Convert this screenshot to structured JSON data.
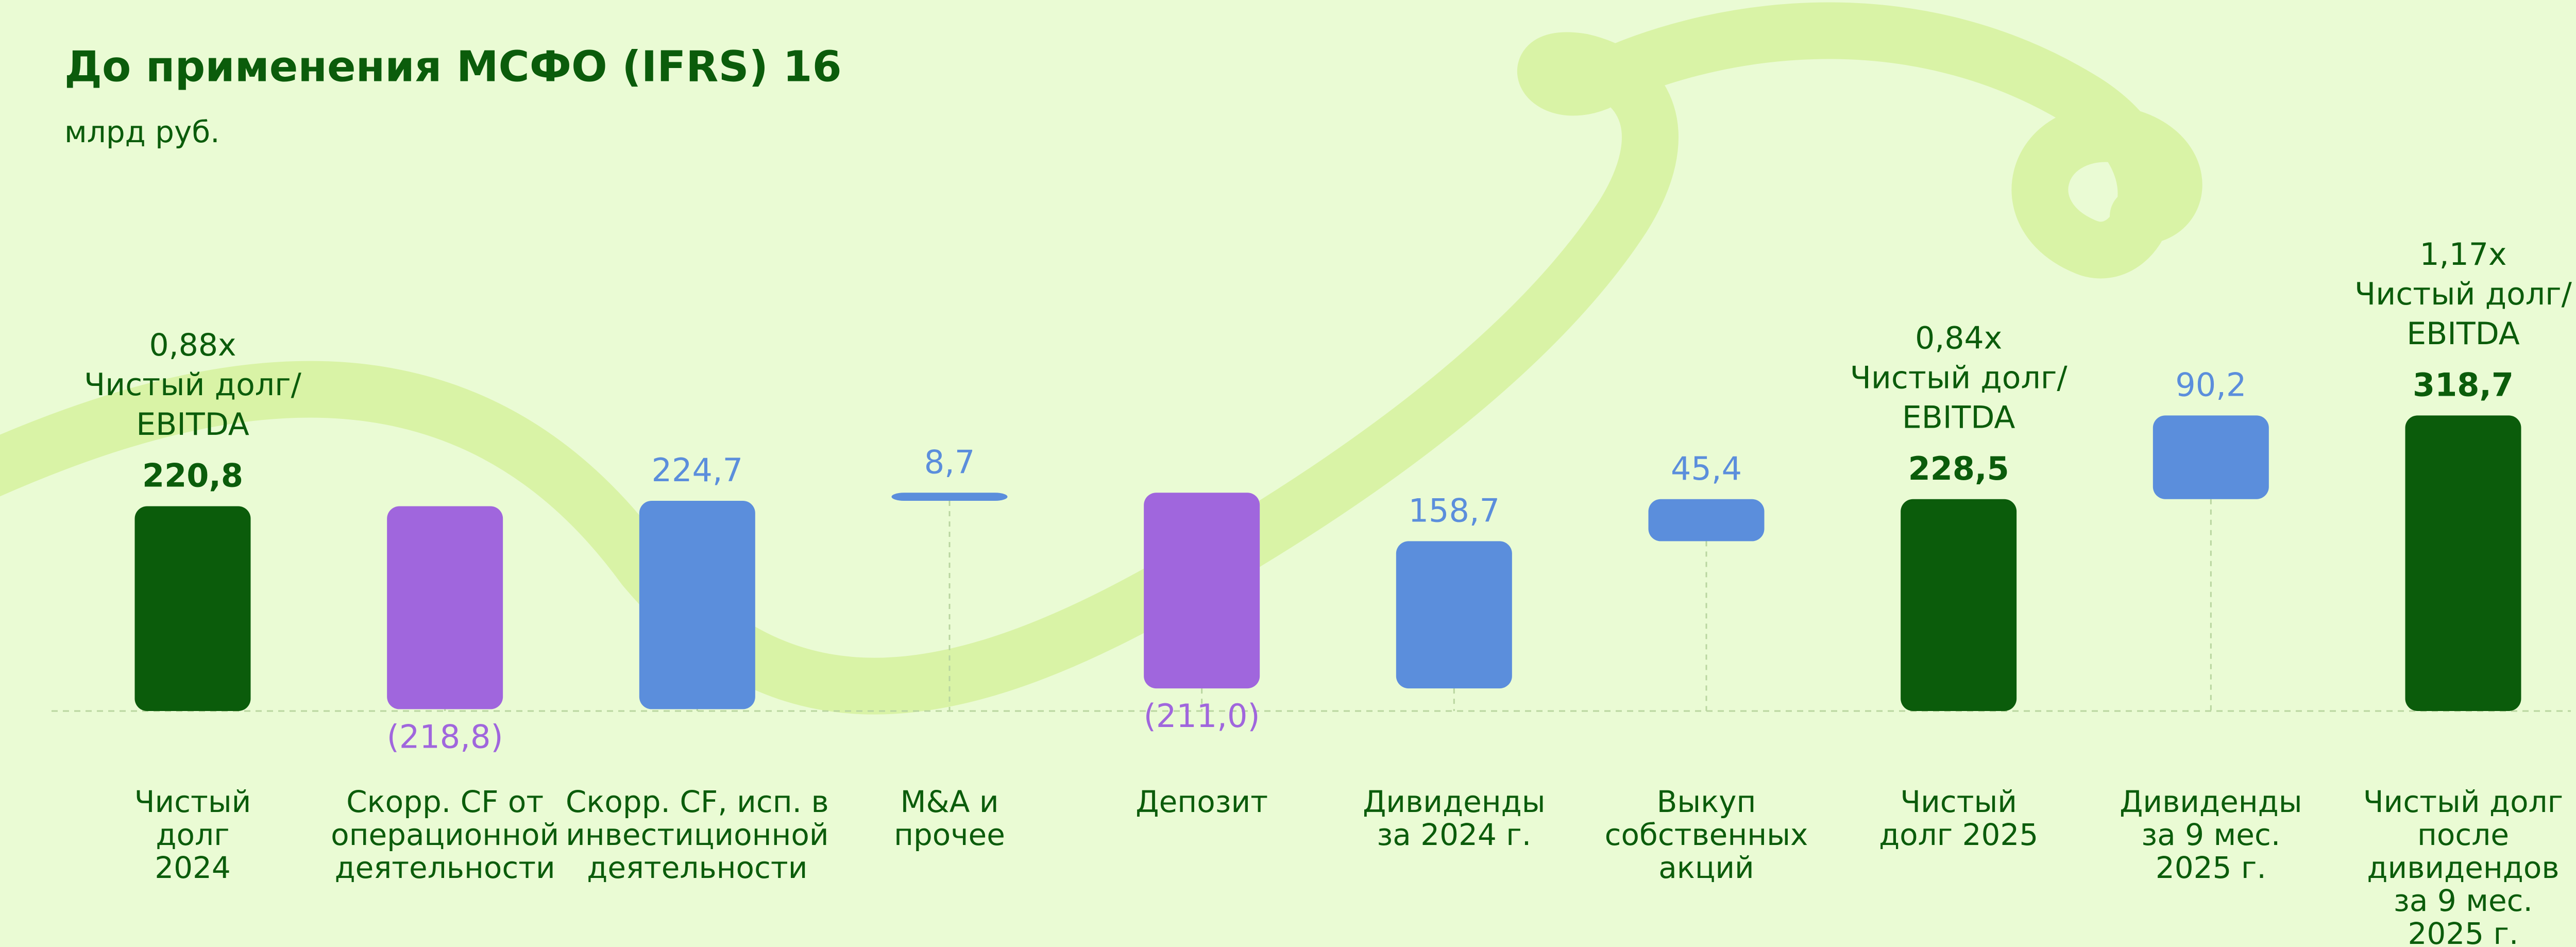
{
  "chart_data": {
    "type": "waterfall",
    "title": "До применения МСФО (IFRS) 16",
    "subtitle": "млрд руб.",
    "categories": [
      [
        "Чистый",
        "долг",
        "2024"
      ],
      [
        "Скорр. CF от",
        "операционной",
        "деятельности"
      ],
      [
        "Скорр. CF, исп. в",
        "инвестиционной",
        "деятельности"
      ],
      [
        "M&A и",
        "прочее"
      ],
      [
        "Депозит"
      ],
      [
        "Дивиденды",
        "за 2024 г."
      ],
      [
        "Выкуп",
        "собственных",
        "акций"
      ],
      [
        "Чистый",
        "долг 2025"
      ],
      [
        "Дивиденды",
        "за 9 мес.",
        "2025 г."
      ],
      [
        "Чистый долг",
        "после",
        "дивидендов",
        "за 9 мес.",
        "2025 г."
      ]
    ],
    "values": [
      220.8,
      -218.8,
      224.7,
      8.7,
      -211.0,
      158.7,
      45.4,
      228.5,
      90.2,
      318.7
    ],
    "value_labels": [
      "220,8",
      "(218,8)",
      "224,7",
      "8,7",
      "(211,0)",
      "158,7",
      "45,4",
      "228,5",
      "90,2",
      "318,7"
    ],
    "measure": [
      "total",
      "relative",
      "relative",
      "relative",
      "relative",
      "relative",
      "relative",
      "total",
      "relative",
      "total"
    ],
    "colors": [
      "#0b5c0b",
      "#a066dd",
      "#5b8edc",
      "#5b8edc",
      "#a066dd",
      "#5b8edc",
      "#5b8edc",
      "#0b5c0b",
      "#5b8edc",
      "#0b5c0b"
    ],
    "annotations": [
      [
        "0,88x",
        "Чистый долг/",
        "EBITDA"
      ],
      null,
      null,
      null,
      null,
      null,
      null,
      [
        "0,84x",
        "Чистый долг/",
        "EBITDA"
      ],
      null,
      [
        "1,17x",
        "Чистый долг/",
        "EBITDA"
      ]
    ],
    "ylim": [
      0,
      360
    ]
  }
}
